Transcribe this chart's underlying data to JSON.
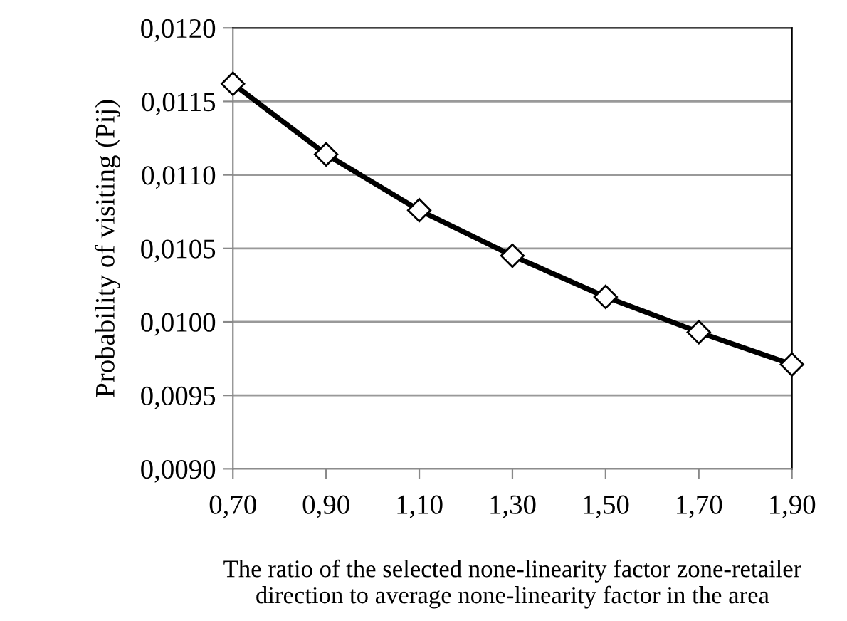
{
  "chart_data": {
    "type": "line",
    "xlabel": "The ratio of the selected none-linearity factor zone-retailer direction to average none-linearity factor in the area",
    "ylabel": "Probability of visiting (Pij)",
    "categories": [
      "0,70",
      "0,90",
      "1,10",
      "1,30",
      "1,50",
      "1,70",
      "1,90"
    ],
    "series": [
      {
        "color": "#000000",
        "values": [
          0.01162,
          0.01114,
          0.01076,
          0.01045,
          0.01017,
          0.00993,
          0.00971
        ]
      }
    ],
    "ylim": [
      0.009,
      0.012
    ],
    "yticks": [
      {
        "value": 0.009,
        "label": "0,0090"
      },
      {
        "value": 0.0095,
        "label": "0,0095"
      },
      {
        "value": 0.01,
        "label": "0,0100"
      },
      {
        "value": 0.0105,
        "label": "0,0105"
      },
      {
        "value": 0.011,
        "label": "0,0110"
      },
      {
        "value": 0.0115,
        "label": "0,0115"
      },
      {
        "value": 0.012,
        "label": "0,0120"
      }
    ],
    "grid": "y",
    "marker": "diamond",
    "line_style": "solid"
  }
}
